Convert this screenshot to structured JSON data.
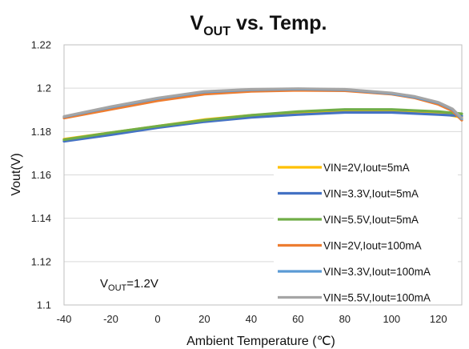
{
  "chart_data": {
    "type": "line",
    "title": {
      "main": "V",
      "sub": "OUT",
      "rest": " vs. Temp."
    },
    "xlabel": "Ambient Temperature (℃)",
    "ylabel": "Vout(V)",
    "xlim": [
      -40,
      130
    ],
    "ylim": [
      1.1,
      1.22
    ],
    "xticks": [
      -40,
      -20,
      0,
      20,
      40,
      60,
      80,
      100,
      120
    ],
    "yticks": [
      1.1,
      1.12,
      1.14,
      1.16,
      1.18,
      1.2,
      1.22
    ],
    "ytick_labels": [
      "1.1",
      "1.12",
      "1.14",
      "1.16",
      "1.18",
      "1.2",
      "1.22"
    ],
    "grid": {
      "horizontal": true,
      "vertical": false
    },
    "legend": "bottom-right",
    "annotation": {
      "main": "V",
      "sub": "OUT",
      "rest": "=1.2V"
    },
    "series": [
      {
        "name": "VIN=2V,Iout=5mA",
        "color": "#FFC000",
        "x": [
          -40,
          -20,
          0,
          20,
          40,
          60,
          80,
          100,
          120,
          130
        ],
        "y": [
          1.1765,
          1.1795,
          1.1825,
          1.1855,
          1.1875,
          1.1888,
          1.1898,
          1.1898,
          1.1885,
          1.1865
        ]
      },
      {
        "name": "VIN=3.3V,Iout=5mA",
        "color": "#4472C4",
        "x": [
          -40,
          -20,
          0,
          20,
          40,
          60,
          80,
          100,
          120,
          130
        ],
        "y": [
          1.1755,
          1.1785,
          1.1818,
          1.1845,
          1.1865,
          1.1878,
          1.1888,
          1.1888,
          1.1878,
          1.1872
        ]
      },
      {
        "name": "VIN=5.5V,Iout=5mA",
        "color": "#70AD47",
        "x": [
          -40,
          -20,
          0,
          20,
          40,
          60,
          80,
          100,
          120,
          130
        ],
        "y": [
          1.1762,
          1.1795,
          1.1825,
          1.1852,
          1.1875,
          1.1892,
          1.1902,
          1.1902,
          1.1892,
          1.1882
        ]
      },
      {
        "name": "VIN=2V,Iout=100mA",
        "color": "#ED7D31",
        "x": [
          -40,
          -20,
          0,
          20,
          40,
          60,
          80,
          100,
          110,
          120,
          126,
          130
        ],
        "y": [
          1.1862,
          1.1902,
          1.1942,
          1.1972,
          1.1985,
          1.199,
          1.1988,
          1.1972,
          1.1955,
          1.1925,
          1.1895,
          1.1852
        ]
      },
      {
        "name": "VIN=3.3V,Iout=100mA",
        "color": "#5B9BD5",
        "x": [
          -40,
          -20,
          0,
          20,
          40,
          60,
          80,
          100,
          110,
          120,
          126,
          130
        ],
        "y": [
          1.1868,
          1.1912,
          1.1952,
          1.1982,
          1.1993,
          1.1996,
          1.1993,
          1.1975,
          1.1958,
          1.1932,
          1.1902,
          1.1858
        ]
      },
      {
        "name": "VIN=5.5V,Iout=100mA",
        "color": "#A5A5A5",
        "x": [
          -40,
          -20,
          0,
          20,
          40,
          60,
          80,
          100,
          110,
          120,
          126,
          130
        ],
        "y": [
          1.187,
          1.1915,
          1.1955,
          1.1985,
          1.1995,
          1.1998,
          1.1995,
          1.1978,
          1.1962,
          1.1935,
          1.1905,
          1.1862
        ]
      }
    ]
  }
}
